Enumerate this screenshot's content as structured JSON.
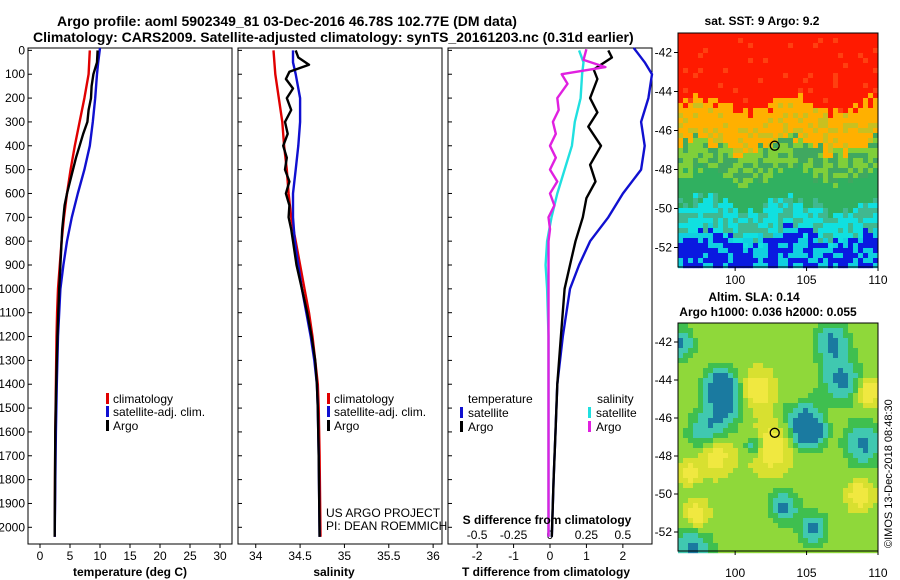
{
  "header": {
    "title_line1": "Argo profile: aoml 5902349_81 03-Dec-2016 46.78S 102.77E (DM data)",
    "title_line2": "Climatology: CARS2009. Satellite-adjusted climatology: synTS_20161203.nc (0.31d earlier)"
  },
  "colors": {
    "climatology": "#e00000",
    "satellite": "#1010d0",
    "argo": "#000000",
    "s_satellite": "#20e0e0",
    "s_argo": "#e020e0"
  },
  "chart_data": [
    {
      "type": "line",
      "id": "temperature",
      "xlabel": "temperature (deg C)",
      "ylabel": "",
      "xlim": [
        -2,
        32
      ],
      "ylim": [
        2070,
        -10
      ],
      "xticks": [
        "0",
        "5",
        "10",
        "15",
        "20",
        "25",
        "30"
      ],
      "xtick_values": [
        0,
        5,
        10,
        15,
        20,
        25,
        30
      ],
      "yticks": [
        "0",
        "100",
        "200",
        "300",
        "400",
        "500",
        "600",
        "700",
        "800",
        "900",
        "1000",
        "1100",
        "1200",
        "1300",
        "1400",
        "1500",
        "1600",
        "1700",
        "1800",
        "1900",
        "2000"
      ],
      "ytick_values": [
        0,
        100,
        200,
        300,
        400,
        500,
        600,
        700,
        800,
        900,
        1000,
        1100,
        1200,
        1300,
        1400,
        1500,
        1600,
        1700,
        1800,
        1900,
        2000
      ],
      "legend": [
        "climatology",
        "satellite-adj. clim.",
        "Argo"
      ],
      "series": [
        {
          "name": "climatology",
          "color_key": "climatology",
          "points": [
            [
              8.3,
              0
            ],
            [
              8.1,
              100
            ],
            [
              7.4,
              200
            ],
            [
              6.6,
              300
            ],
            [
              5.8,
              400
            ],
            [
              5.1,
              500
            ],
            [
              4.5,
              600
            ],
            [
              4.0,
              700
            ],
            [
              3.6,
              800
            ],
            [
              3.3,
              900
            ],
            [
              3.0,
              1000
            ],
            [
              2.85,
              1100
            ],
            [
              2.75,
              1200
            ],
            [
              2.65,
              1400
            ],
            [
              2.55,
              1600
            ],
            [
              2.5,
              1800
            ],
            [
              2.45,
              2040
            ]
          ]
        },
        {
          "name": "satellite-adj. clim.",
          "color_key": "satellite",
          "points": [
            [
              10.0,
              -10
            ],
            [
              9.7,
              50
            ],
            [
              9.5,
              100
            ],
            [
              9.2,
              200
            ],
            [
              8.8,
              300
            ],
            [
              8.3,
              400
            ],
            [
              7.4,
              500
            ],
            [
              6.3,
              600
            ],
            [
              5.3,
              700
            ],
            [
              4.5,
              800
            ],
            [
              3.9,
              900
            ],
            [
              3.4,
              1000
            ],
            [
              3.0,
              1200
            ],
            [
              2.8,
              1400
            ],
            [
              2.65,
              1600
            ],
            [
              2.55,
              1800
            ],
            [
              2.45,
              2040
            ]
          ]
        },
        {
          "name": "Argo",
          "color_key": "argo",
          "points": [
            [
              9.6,
              0
            ],
            [
              9.5,
              50
            ],
            [
              8.9,
              100
            ],
            [
              8.6,
              150
            ],
            [
              8.5,
              200
            ],
            [
              8.1,
              250
            ],
            [
              7.9,
              300
            ],
            [
              7.2,
              350
            ],
            [
              6.6,
              400
            ],
            [
              6.0,
              450
            ],
            [
              5.5,
              500
            ],
            [
              5.0,
              550
            ],
            [
              4.5,
              600
            ],
            [
              4.1,
              650
            ],
            [
              3.9,
              700
            ],
            [
              3.7,
              750
            ],
            [
              3.6,
              800
            ],
            [
              3.4,
              900
            ],
            [
              3.2,
              1000
            ],
            [
              2.9,
              1200
            ],
            [
              2.7,
              1400
            ],
            [
              2.55,
              1600
            ],
            [
              2.5,
              1800
            ],
            [
              2.45,
              2040
            ]
          ]
        }
      ]
    },
    {
      "type": "line",
      "id": "salinity",
      "xlabel": "salinity",
      "xlim": [
        33.8,
        36.1
      ],
      "ylim": [
        2070,
        -10
      ],
      "xticks": [
        "34",
        "34.5",
        "35",
        "35.5",
        "36"
      ],
      "xtick_values": [
        34,
        34.5,
        35,
        35.5,
        36
      ],
      "legend": [
        "climatology",
        "satellite-adj. clim.",
        "Argo"
      ],
      "credit_line1": "US ARGO PROJECT",
      "credit_line2": "PI: DEAN ROEMMICH",
      "series": [
        {
          "name": "climatology",
          "color_key": "climatology",
          "points": [
            [
              34.2,
              0
            ],
            [
              34.22,
              100
            ],
            [
              34.26,
              200
            ],
            [
              34.3,
              300
            ],
            [
              34.32,
              400
            ],
            [
              34.35,
              500
            ],
            [
              34.37,
              600
            ],
            [
              34.4,
              700
            ],
            [
              34.45,
              800
            ],
            [
              34.5,
              900
            ],
            [
              34.55,
              1000
            ],
            [
              34.6,
              1100
            ],
            [
              34.64,
              1200
            ],
            [
              34.67,
              1300
            ],
            [
              34.7,
              1400
            ],
            [
              34.71,
              1500
            ],
            [
              34.72,
              1700
            ],
            [
              34.73,
              2040
            ]
          ]
        },
        {
          "name": "satellite-adj. clim.",
          "color_key": "satellite",
          "points": [
            [
              34.42,
              0
            ],
            [
              34.42,
              50
            ],
            [
              34.45,
              100
            ],
            [
              34.5,
              200
            ],
            [
              34.5,
              300
            ],
            [
              34.48,
              400
            ],
            [
              34.45,
              500
            ],
            [
              34.42,
              600
            ],
            [
              34.42,
              700
            ],
            [
              34.44,
              800
            ],
            [
              34.48,
              900
            ],
            [
              34.52,
              1000
            ],
            [
              34.57,
              1100
            ],
            [
              34.62,
              1200
            ],
            [
              34.66,
              1300
            ],
            [
              34.69,
              1400
            ],
            [
              34.7,
              1500
            ],
            [
              34.71,
              1700
            ],
            [
              34.72,
              2040
            ]
          ]
        },
        {
          "name": "Argo",
          "color_key": "argo",
          "points": [
            [
              34.45,
              0
            ],
            [
              34.48,
              30
            ],
            [
              34.6,
              60
            ],
            [
              34.38,
              90
            ],
            [
              34.34,
              120
            ],
            [
              34.42,
              160
            ],
            [
              34.35,
              200
            ],
            [
              34.4,
              250
            ],
            [
              34.33,
              300
            ],
            [
              34.36,
              350
            ],
            [
              34.31,
              400
            ],
            [
              34.35,
              450
            ],
            [
              34.33,
              500
            ],
            [
              34.38,
              550
            ],
            [
              34.34,
              600
            ],
            [
              34.38,
              650
            ],
            [
              34.37,
              700
            ],
            [
              34.4,
              750
            ],
            [
              34.42,
              800
            ],
            [
              34.46,
              900
            ],
            [
              34.52,
              1000
            ],
            [
              34.58,
              1100
            ],
            [
              34.63,
              1200
            ],
            [
              34.67,
              1300
            ],
            [
              34.69,
              1400
            ],
            [
              34.7,
              1500
            ],
            [
              34.71,
              1700
            ],
            [
              34.72,
              2040
            ]
          ]
        }
      ]
    },
    {
      "type": "line",
      "id": "differences",
      "xlabel": "T difference from climatology",
      "top_label": "S difference  from climatology",
      "xlim": [
        -2.8,
        2.8
      ],
      "ylim": [
        2070,
        -10
      ],
      "xticks": [
        "-2",
        "-1",
        "0",
        "1",
        "2"
      ],
      "xtick_values": [
        -2,
        -1,
        0,
        1,
        2
      ],
      "s_xlim": [
        -0.7,
        0.7
      ],
      "s_xticks": [
        "-0.5",
        "-0.25",
        "0",
        "0.25",
        "0.5"
      ],
      "s_xtick_values": [
        -0.5,
        -0.25,
        0,
        0.25,
        0.5
      ],
      "legend_temperature_title": "temperature",
      "legend_salinity_title": "salinity",
      "legend_items": [
        "satellite",
        "Argo"
      ],
      "series": [
        {
          "name": "T satellite",
          "color_key": "satellite",
          "axis": "T",
          "points": [
            [
              2.3,
              -10
            ],
            [
              2.6,
              50
            ],
            [
              2.8,
              100
            ],
            [
              2.7,
              200
            ],
            [
              2.5,
              300
            ],
            [
              2.6,
              400
            ],
            [
              2.5,
              500
            ],
            [
              2.0,
              600
            ],
            [
              1.6,
              700
            ],
            [
              1.1,
              800
            ],
            [
              0.8,
              900
            ],
            [
              0.55,
              1000
            ],
            [
              0.35,
              1200
            ],
            [
              0.2,
              1400
            ],
            [
              0.15,
              1600
            ],
            [
              0.1,
              1800
            ],
            [
              0.05,
              2040
            ]
          ]
        },
        {
          "name": "T Argo",
          "color_key": "argo",
          "axis": "T",
          "points": [
            [
              1.6,
              0
            ],
            [
              1.7,
              30
            ],
            [
              1.2,
              80
            ],
            [
              1.3,
              120
            ],
            [
              1.1,
              200
            ],
            [
              1.3,
              260
            ],
            [
              1.05,
              320
            ],
            [
              1.4,
              400
            ],
            [
              1.1,
              480
            ],
            [
              1.25,
              550
            ],
            [
              1.0,
              620
            ],
            [
              0.9,
              700
            ],
            [
              0.7,
              800
            ],
            [
              0.55,
              900
            ],
            [
              0.4,
              1000
            ],
            [
              0.3,
              1200
            ],
            [
              0.2,
              1400
            ],
            [
              0.15,
              1600
            ],
            [
              0.1,
              1800
            ],
            [
              0.05,
              2040
            ]
          ]
        },
        {
          "name": "S satellite",
          "color_key": "s_satellite",
          "axis": "S",
          "points": [
            [
              0.2,
              0
            ],
            [
              0.23,
              50
            ],
            [
              0.22,
              100
            ],
            [
              0.21,
              200
            ],
            [
              0.17,
              300
            ],
            [
              0.15,
              400
            ],
            [
              0.1,
              500
            ],
            [
              0.05,
              600
            ],
            [
              0.01,
              700
            ],
            [
              -0.02,
              800
            ],
            [
              -0.03,
              900
            ],
            [
              -0.02,
              1000
            ],
            [
              -0.01,
              1200
            ],
            [
              -0.01,
              1400
            ],
            [
              -0.01,
              1600
            ],
            [
              -0.01,
              1800
            ],
            [
              -0.01,
              2040
            ]
          ]
        },
        {
          "name": "S Argo",
          "color_key": "s_argo",
          "axis": "S",
          "points": [
            [
              0.25,
              -5
            ],
            [
              0.23,
              40
            ],
            [
              0.38,
              70
            ],
            [
              0.08,
              100
            ],
            [
              0.12,
              140
            ],
            [
              0.05,
              200
            ],
            [
              0.06,
              250
            ],
            [
              0.02,
              300
            ],
            [
              0.04,
              350
            ],
            [
              0.0,
              400
            ],
            [
              0.04,
              450
            ],
            [
              0.0,
              500
            ],
            [
              0.05,
              550
            ],
            [
              0.0,
              600
            ],
            [
              0.03,
              650
            ],
            [
              -0.01,
              700
            ],
            [
              0.0,
              750
            ],
            [
              -0.01,
              800
            ],
            [
              -0.01,
              900
            ],
            [
              -0.01,
              1000
            ],
            [
              -0.01,
              1200
            ],
            [
              -0.01,
              1400
            ],
            [
              -0.01,
              1600
            ],
            [
              -0.01,
              1800
            ],
            [
              -0.01,
              2040
            ]
          ]
        }
      ]
    },
    {
      "type": "heatmap",
      "id": "sst_map",
      "title": "sat. SST: 9 Argo: 9.2",
      "xlim": [
        96,
        110
      ],
      "ylim": [
        -53,
        -41
      ],
      "xticks": [
        "100",
        "105",
        "110"
      ],
      "xtick_values": [
        100,
        105,
        110
      ],
      "yticks": [
        "-42",
        "-44",
        "-46",
        "-48",
        "-50",
        "-52"
      ],
      "ytick_values": [
        -42,
        -44,
        -46,
        -48,
        -50,
        -52
      ],
      "argo_position": [
        102.77,
        -46.78
      ]
    },
    {
      "type": "heatmap",
      "id": "sla_map",
      "title": "Altim. SLA: 0.14",
      "subtitle": "Argo h1000: 0.036 h2000: 0.055",
      "xlim": [
        96,
        110
      ],
      "ylim": [
        -53,
        -41
      ],
      "xticks": [
        "100",
        "105",
        "110"
      ],
      "xtick_values": [
        100,
        105,
        110
      ],
      "yticks": [
        "-42",
        "-44",
        "-46",
        "-48",
        "-50",
        "-52"
      ],
      "ytick_values": [
        -42,
        -44,
        -46,
        -48,
        -50,
        -52
      ],
      "argo_position": [
        102.77,
        -46.78
      ]
    }
  ],
  "footer": {
    "timestamp": "©IMOS 13-Dec-2018 08:48:30"
  }
}
